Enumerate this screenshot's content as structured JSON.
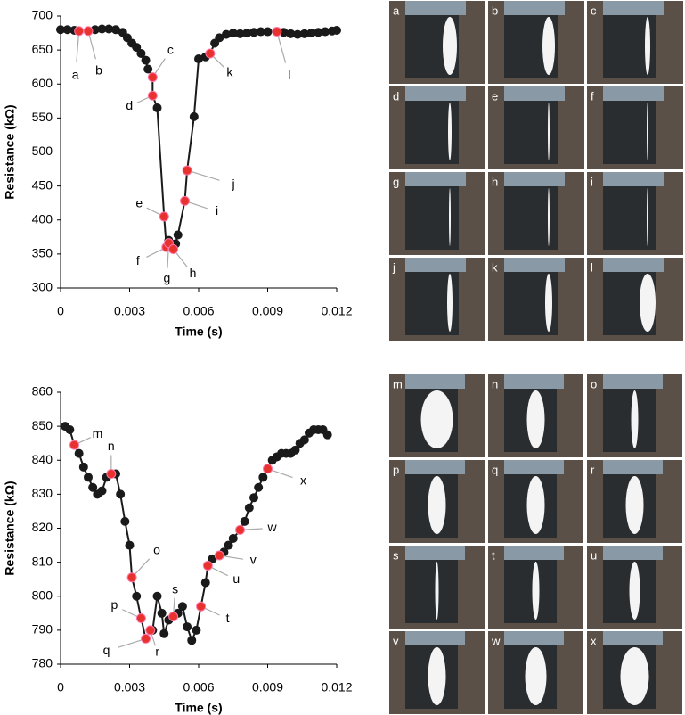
{
  "chart_data": [
    {
      "type": "line",
      "xlabel": "Time (s)",
      "ylabel": "Resistance (kΩ)",
      "xlim": [
        0,
        0.012
      ],
      "xticks": [
        0,
        0.003,
        0.006,
        0.009,
        0.012
      ],
      "ylim": [
        300,
        700
      ],
      "yticks": [
        300,
        350,
        400,
        450,
        500,
        550,
        600,
        650,
        700
      ],
      "series": [
        {
          "color": "#1a1a1a",
          "x": [
            0,
            0.0003,
            0.0006,
            0.0008,
            0.0012,
            0.0015,
            0.0018,
            0.0021,
            0.0024,
            0.0027,
            0.0029,
            0.0031,
            0.0033,
            0.0035,
            0.0037,
            0.0038,
            0.004,
            0.004,
            0.0042,
            0.0045,
            0.0046,
            0.0047,
            0.0048,
            0.0049,
            0.005,
            0.0051,
            0.0054,
            0.0055,
            0.0058,
            0.006,
            0.0063,
            0.0065,
            0.0067,
            0.0069,
            0.0072,
            0.0075,
            0.0078,
            0.0081,
            0.0084,
            0.0087,
            0.009,
            0.0094,
            0.0097,
            0.01,
            0.0103,
            0.0106,
            0.0109,
            0.0112,
            0.0115,
            0.0118,
            0.012
          ],
          "values": [
            680,
            680,
            679,
            678,
            678,
            680,
            681,
            681,
            680,
            676,
            668,
            660,
            654,
            645,
            635,
            622,
            610,
            583,
            565,
            405,
            360,
            370,
            365,
            357,
            365,
            378,
            428,
            473,
            552,
            637,
            640,
            645,
            660,
            668,
            673,
            675,
            674,
            675,
            676,
            677,
            677,
            677,
            676,
            674,
            673,
            674,
            675,
            676,
            677,
            678,
            679
          ]
        },
        {
          "color": "#e8322d",
          "labels": [
            "a",
            "b",
            "c",
            "d",
            "e",
            "f",
            "g",
            "h",
            "i",
            "j",
            "k",
            "l"
          ],
          "x": [
            0.0008,
            0.0012,
            0.004,
            0.004,
            0.0045,
            0.0046,
            0.0047,
            0.0049,
            0.0054,
            0.0055,
            0.0065,
            0.0094
          ],
          "values": [
            678,
            678,
            610,
            583,
            405,
            360,
            366,
            357,
            428,
            473,
            645,
            677
          ]
        }
      ]
    },
    {
      "type": "line",
      "xlabel": "Time (s)",
      "ylabel": "Resistance (kΩ)",
      "xlim": [
        0,
        0.012
      ],
      "xticks": [
        0,
        0.003,
        0.006,
        0.009,
        0.012
      ],
      "ylim": [
        780,
        860
      ],
      "yticks": [
        780,
        790,
        800,
        810,
        820,
        830,
        840,
        850,
        860
      ],
      "series": [
        {
          "color": "#1a1a1a",
          "x": [
            0.0002,
            0.0004,
            0.0006,
            0.0008,
            0.001,
            0.0012,
            0.0014,
            0.0016,
            0.0018,
            0.002,
            0.0022,
            0.0024,
            0.0026,
            0.0028,
            0.003,
            0.0031,
            0.0033,
            0.0035,
            0.0037,
            0.0039,
            0.004,
            0.0042,
            0.0044,
            0.0045,
            0.0047,
            0.0049,
            0.0051,
            0.0053,
            0.0055,
            0.0057,
            0.0059,
            0.0061,
            0.0063,
            0.0064,
            0.0066,
            0.0069,
            0.0071,
            0.0073,
            0.0075,
            0.0078,
            0.008,
            0.0082,
            0.0084,
            0.0086,
            0.0088,
            0.009,
            0.0092,
            0.0094,
            0.0096,
            0.0098,
            0.01,
            0.0102,
            0.0104,
            0.0106,
            0.0108,
            0.011,
            0.0112,
            0.0114,
            0.0116
          ],
          "values": [
            850,
            849,
            844.5,
            842,
            838,
            835,
            832,
            830,
            831,
            835,
            836,
            836,
            830,
            822,
            815,
            805.5,
            800,
            793.5,
            787.5,
            790,
            790,
            800,
            795,
            789,
            793,
            794,
            795,
            797,
            791,
            787,
            790,
            797,
            804,
            809,
            811,
            812,
            813,
            815,
            817,
            819.5,
            822,
            826,
            829,
            832,
            835,
            837.5,
            840,
            841,
            842,
            842,
            842,
            843,
            845,
            846,
            848,
            849,
            849,
            849,
            847.5
          ]
        },
        {
          "color": "#e8322d",
          "labels": [
            "m",
            "n",
            "o",
            "p",
            "q",
            "r",
            "s",
            "t",
            "u",
            "v",
            "w",
            "x"
          ],
          "x": [
            0.0006,
            0.0022,
            0.0031,
            0.0035,
            0.0037,
            0.0039,
            0.0049,
            0.0061,
            0.0064,
            0.0069,
            0.0078,
            0.009
          ],
          "values": [
            844.5,
            836,
            805.5,
            793.5,
            787.5,
            790,
            794,
            797,
            809,
            812,
            819.5,
            837.5
          ]
        }
      ]
    }
  ],
  "photo_panels": [
    {
      "labels": [
        "a",
        "b",
        "c",
        "d",
        "e",
        "f",
        "g",
        "h",
        "i",
        "j",
        "k",
        "l"
      ]
    },
    {
      "labels": [
        "m",
        "n",
        "o",
        "p",
        "q",
        "r",
        "s",
        "t",
        "u",
        "v",
        "w",
        "x"
      ]
    }
  ]
}
